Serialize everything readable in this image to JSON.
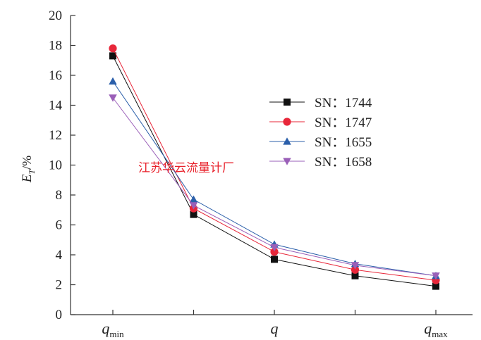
{
  "chart_data": {
    "type": "line",
    "title": "",
    "ylabel": {
      "symbol": "E",
      "subscript": "T",
      "unit": "/%"
    },
    "xlabel": "",
    "ylim": [
      0,
      20
    ],
    "yticks": [
      0,
      2,
      4,
      6,
      8,
      10,
      12,
      14,
      16,
      18,
      20
    ],
    "x": [
      1,
      2,
      3,
      4,
      5
    ],
    "xtick_labels": [
      {
        "pos": 1,
        "main": "q",
        "sub": "min"
      },
      {
        "pos": 3,
        "main": "q",
        "sub": ""
      },
      {
        "pos": 5,
        "main": "q",
        "sub": "max"
      }
    ],
    "grid": false,
    "legend_position": "right",
    "series": [
      {
        "name": "SN：1744",
        "marker": "square",
        "color": "#111111",
        "values": [
          17.3,
          6.7,
          3.7,
          2.6,
          1.9
        ]
      },
      {
        "name": "SN：1747",
        "marker": "circle",
        "color": "#e8273a",
        "values": [
          17.8,
          7.1,
          4.2,
          3.0,
          2.3
        ]
      },
      {
        "name": "SN：1655",
        "marker": "triangle-up",
        "color": "#2b5faa",
        "values": [
          15.6,
          7.7,
          4.7,
          3.4,
          2.6
        ]
      },
      {
        "name": "SN：1658",
        "marker": "triangle-down",
        "color": "#9a5fb8",
        "values": [
          14.5,
          7.3,
          4.5,
          3.3,
          2.6
        ]
      }
    ]
  },
  "watermark": "江苏华云流量计厂"
}
